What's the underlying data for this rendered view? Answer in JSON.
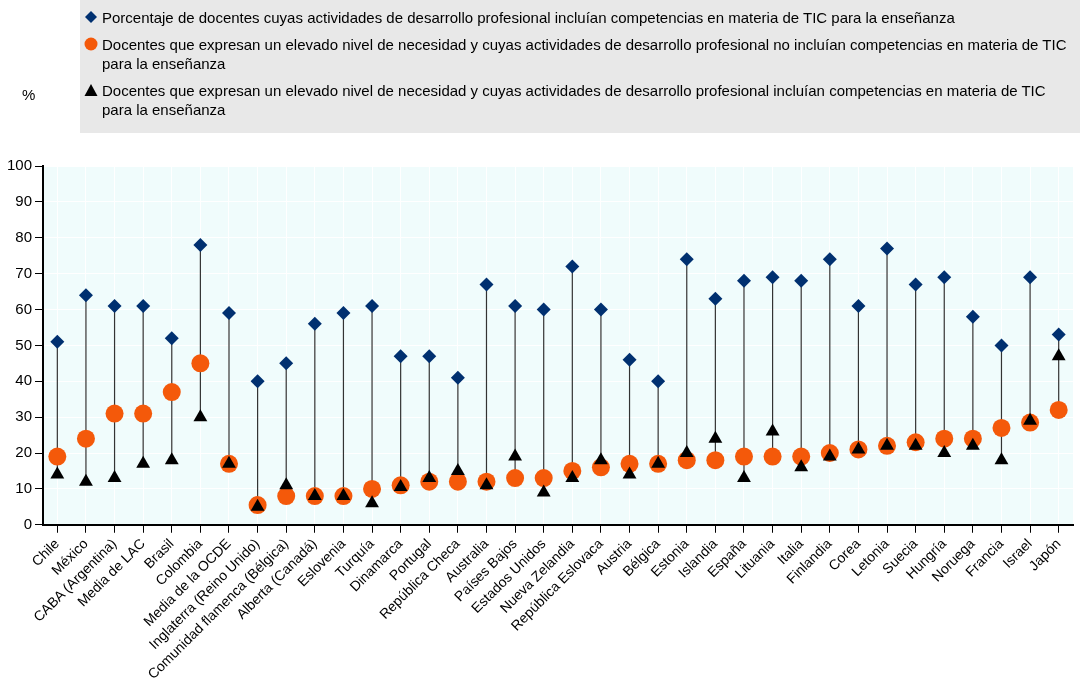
{
  "chart_data": {
    "type": "scatter",
    "ylabel": "%",
    "legend": "top",
    "grid": true,
    "categories": [
      "Chile",
      "México",
      "CABA (Argentina)",
      "Media de LAC",
      "Brasil",
      "Colombia",
      "Media de la OCDE",
      "Inglaterra (Reino Unido)",
      "Comunidad flamenca (Bélgica)",
      "Alberta (Canadá)",
      "Eslovenia",
      "Turquía",
      "Dinamarca",
      "Portugal",
      "República Checa",
      "Australia",
      "Países Bajos",
      "Estados Unidos",
      "Nueva Zelandia",
      "República Eslovaca",
      "Austria",
      "Bélgica",
      "Estonia",
      "Islandia",
      "España",
      "Lituania",
      "Italia",
      "Finlandia",
      "Corea",
      "Letonia",
      "Suecia",
      "Hungría",
      "Noruega",
      "Francia",
      "Israel",
      "Japón"
    ],
    "ylim": [
      0,
      100
    ],
    "yticks": [
      0,
      10,
      20,
      30,
      40,
      50,
      60,
      70,
      80,
      90,
      100
    ],
    "series": [
      {
        "name": "Porcentaje de docentes cuyas actividades de desarrollo profesional incluían competencias en materia de TIC para la enseñanza",
        "color": "#003070",
        "marker": "diamond",
        "values": [
          51,
          64,
          61,
          61,
          52,
          78,
          59,
          40,
          45,
          56,
          59,
          61,
          47,
          47,
          41,
          67,
          61,
          60,
          72,
          60,
          46,
          40,
          74,
          63,
          68,
          69,
          68,
          74,
          61,
          77,
          67,
          69,
          58,
          50,
          69,
          53
        ]
      },
      {
        "name": "Docentes que expresan un elevado nivel de necesidad y cuyas actividades de desarrollo profesional no incluían competencias en materia de TIC para la enseñanza",
        "color": "#f4590a",
        "marker": "circle",
        "values": [
          19,
          24,
          31,
          31,
          37,
          45,
          17,
          5.5,
          8,
          8,
          8,
          10,
          11,
          12,
          12,
          12,
          13,
          13,
          15,
          16,
          17,
          17,
          18,
          18,
          19,
          19,
          19,
          20,
          21,
          22,
          23,
          24,
          24,
          27,
          28.5,
          32
        ]
      },
      {
        "name": "Docentes que expresan un elevado nivel de necesidad y cuyas actividades de desarrollo profesional incluían competencias en materia de TIC para la enseñanza",
        "color": "#000000",
        "marker": "triangle",
        "values": [
          14,
          12,
          13,
          17,
          18,
          30,
          17,
          5,
          11,
          8,
          8,
          6,
          10.5,
          13,
          15,
          11,
          19,
          9,
          13,
          18,
          14,
          17,
          20,
          24,
          13,
          26,
          16,
          19,
          21,
          22,
          22,
          20,
          22,
          18,
          29,
          47
        ]
      }
    ]
  }
}
